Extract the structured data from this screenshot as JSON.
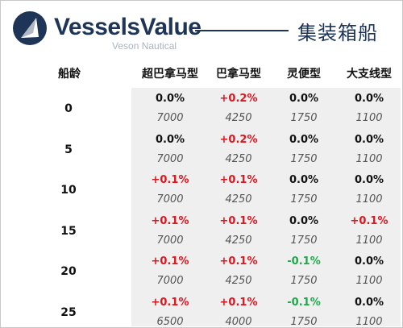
{
  "brand": {
    "name": "VesselsValue",
    "subtitle": "Veson Nautical"
  },
  "title": "集装箱船",
  "table": {
    "age_header": "船龄",
    "columns": [
      "超巴拿马型",
      "巴拿马型",
      "灵便型",
      "大支线型"
    ],
    "rows": [
      {
        "age": "0",
        "changes": [
          "0.0%",
          "+0.2%",
          "0.0%",
          "0.0%"
        ],
        "change_dirs": [
          "flat",
          "up",
          "flat",
          "flat"
        ],
        "values": [
          "7000",
          "4250",
          "1750",
          "1100"
        ]
      },
      {
        "age": "5",
        "changes": [
          "0.0%",
          "+0.2%",
          "0.0%",
          "0.0%"
        ],
        "change_dirs": [
          "flat",
          "up",
          "flat",
          "flat"
        ],
        "values": [
          "7000",
          "4250",
          "1750",
          "1100"
        ]
      },
      {
        "age": "10",
        "changes": [
          "+0.1%",
          "+0.1%",
          "0.0%",
          "0.0%"
        ],
        "change_dirs": [
          "up",
          "up",
          "flat",
          "flat"
        ],
        "values": [
          "7000",
          "4250",
          "1750",
          "1100"
        ]
      },
      {
        "age": "15",
        "changes": [
          "+0.1%",
          "+0.1%",
          "0.0%",
          "+0.1%"
        ],
        "change_dirs": [
          "up",
          "up",
          "flat",
          "up"
        ],
        "values": [
          "7000",
          "4250",
          "1750",
          "1100"
        ]
      },
      {
        "age": "20",
        "changes": [
          "+0.1%",
          "+0.1%",
          "-0.1%",
          "0.0%"
        ],
        "change_dirs": [
          "up",
          "up",
          "down",
          "flat"
        ],
        "values": [
          "7000",
          "4250",
          "1750",
          "1100"
        ]
      },
      {
        "age": "25",
        "changes": [
          "+0.1%",
          "+0.1%",
          "-0.1%",
          "0.0%"
        ],
        "change_dirs": [
          "up",
          "up",
          "down",
          "flat"
        ],
        "values": [
          "6500",
          "4000",
          "1750",
          "1100"
        ]
      }
    ]
  },
  "colors": {
    "brand_navy": "#1f3557",
    "positive": "#e0141e",
    "negative": "#1ea84a",
    "table_bg": "#efefef"
  },
  "icons": {
    "logo": "vesselsvalue-logo-icon"
  }
}
